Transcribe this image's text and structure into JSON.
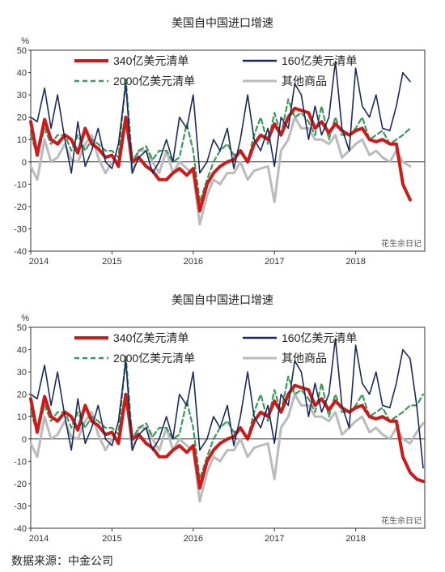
{
  "source": "数据来源：中金公司",
  "watermark": "花生余日记",
  "colors": {
    "s340": "#cc1a1a",
    "s160": "#1a2a5a",
    "s2000": "#3a9a58",
    "other": "#bbbbbb"
  },
  "chart_data": [
    {
      "type": "line",
      "title": "美国自中国进口增速",
      "ylabel": "%",
      "ylim": [
        -40,
        50
      ],
      "yticks": [
        "50",
        "40",
        "30",
        "20",
        "10",
        "0",
        "-10",
        "-20",
        "-30",
        "-40"
      ],
      "xticks": [
        "2014",
        "2015",
        "2016",
        "2017",
        "2018"
      ],
      "xlim": [
        2014.0,
        2018.85
      ],
      "legend": [
        "340亿美元清单",
        "160亿美元清单",
        "2000亿美元清单",
        "其他商品"
      ],
      "series": [
        {
          "name": "340亿美元清单",
          "x": [
            2014.0,
            2014.08,
            2014.17,
            2014.25,
            2014.33,
            2014.42,
            2014.5,
            2014.58,
            2014.67,
            2014.75,
            2014.83,
            2014.92,
            2015.0,
            2015.08,
            2015.17,
            2015.25,
            2015.33,
            2015.42,
            2015.5,
            2015.58,
            2015.67,
            2015.75,
            2015.83,
            2015.92,
            2016.0,
            2016.08,
            2016.17,
            2016.25,
            2016.33,
            2016.42,
            2016.5,
            2016.58,
            2016.67,
            2016.75,
            2016.83,
            2016.92,
            2017.0,
            2017.08,
            2017.17,
            2017.25,
            2017.33,
            2017.42,
            2017.5,
            2017.58,
            2017.67,
            2017.75,
            2017.83,
            2017.92,
            2018.0,
            2018.08,
            2018.17,
            2018.25,
            2018.33,
            2018.42,
            2018.5,
            2018.58,
            2018.67
          ],
          "values": [
            18,
            3,
            19,
            10,
            8,
            12,
            10,
            4,
            15,
            8,
            6,
            2,
            3,
            -2,
            20,
            0,
            2,
            -2,
            -4,
            -8,
            -8,
            -5,
            -3,
            -6,
            -3,
            -22,
            -10,
            -5,
            -2,
            0,
            1,
            5,
            0,
            8,
            12,
            10,
            17,
            12,
            20,
            24,
            23,
            22,
            15,
            18,
            13,
            17,
            14,
            12,
            14,
            15,
            10,
            9,
            10,
            8,
            8,
            -10,
            -17
          ]
        },
        {
          "name": "160亿美元清单",
          "x": [
            2014.0,
            2014.08,
            2014.17,
            2014.25,
            2014.33,
            2014.42,
            2014.5,
            2014.58,
            2014.67,
            2014.75,
            2014.83,
            2014.92,
            2015.0,
            2015.08,
            2015.17,
            2015.25,
            2015.33,
            2015.42,
            2015.5,
            2015.58,
            2015.67,
            2015.75,
            2015.83,
            2015.92,
            2016.0,
            2016.08,
            2016.17,
            2016.25,
            2016.33,
            2016.42,
            2016.5,
            2016.58,
            2016.67,
            2016.75,
            2016.83,
            2016.92,
            2017.0,
            2017.08,
            2017.17,
            2017.25,
            2017.33,
            2017.42,
            2017.5,
            2017.58,
            2017.67,
            2017.75,
            2017.83,
            2017.92,
            2018.0,
            2018.08,
            2018.17,
            2018.25,
            2018.33,
            2018.42,
            2018.5,
            2018.58,
            2018.67
          ],
          "values": [
            20,
            18,
            33,
            15,
            30,
            10,
            -5,
            18,
            -2,
            5,
            15,
            0,
            -3,
            8,
            35,
            -5,
            2,
            5,
            -5,
            0,
            10,
            0,
            20,
            15,
            30,
            -5,
            0,
            10,
            5,
            15,
            -3,
            10,
            30,
            10,
            5,
            15,
            -2,
            20,
            15,
            35,
            30,
            10,
            25,
            12,
            20,
            45,
            15,
            5,
            42,
            25,
            20,
            30,
            15,
            14,
            25,
            40,
            36
          ]
        },
        {
          "name": "2000亿美元清单",
          "x": [
            2014.0,
            2014.08,
            2014.17,
            2014.25,
            2014.33,
            2014.42,
            2014.5,
            2014.58,
            2014.67,
            2014.75,
            2014.83,
            2014.92,
            2015.0,
            2015.08,
            2015.17,
            2015.25,
            2015.33,
            2015.42,
            2015.5,
            2015.58,
            2015.67,
            2015.75,
            2015.83,
            2015.92,
            2016.0,
            2016.08,
            2016.17,
            2016.25,
            2016.33,
            2016.42,
            2016.5,
            2016.58,
            2016.67,
            2016.75,
            2016.83,
            2016.92,
            2017.0,
            2017.08,
            2017.17,
            2017.25,
            2017.33,
            2017.42,
            2017.5,
            2017.58,
            2017.67,
            2017.75,
            2017.83,
            2017.92,
            2018.0,
            2018.08,
            2018.17,
            2018.25,
            2018.33,
            2018.42,
            2018.5,
            2018.58,
            2018.67
          ],
          "values": [
            12,
            3,
            15,
            8,
            12,
            12,
            5,
            12,
            5,
            10,
            8,
            5,
            5,
            2,
            37,
            0,
            5,
            7,
            1,
            5,
            5,
            0,
            2,
            17,
            5,
            -18,
            -8,
            0,
            5,
            8,
            3,
            5,
            0,
            12,
            20,
            8,
            22,
            12,
            28,
            20,
            22,
            18,
            12,
            25,
            10,
            20,
            12,
            12,
            15,
            20,
            10,
            12,
            14,
            8,
            10,
            12,
            15
          ]
        },
        {
          "name": "其他商品",
          "x": [
            2014.0,
            2014.08,
            2014.17,
            2014.25,
            2014.33,
            2014.42,
            2014.5,
            2014.58,
            2014.67,
            2014.75,
            2014.83,
            2014.92,
            2015.0,
            2015.08,
            2015.17,
            2015.25,
            2015.33,
            2015.42,
            2015.5,
            2015.58,
            2015.67,
            2015.75,
            2015.83,
            2015.92,
            2016.0,
            2016.08,
            2016.17,
            2016.25,
            2016.33,
            2016.42,
            2016.5,
            2016.58,
            2016.67,
            2016.75,
            2016.83,
            2016.92,
            2017.0,
            2017.08,
            2017.17,
            2017.25,
            2017.33,
            2017.42,
            2017.5,
            2017.58,
            2017.67,
            2017.75,
            2017.83,
            2017.92,
            2018.0,
            2018.08,
            2018.17,
            2018.25,
            2018.33,
            2018.42,
            2018.5,
            2018.58,
            2018.67
          ],
          "values": [
            -2,
            -8,
            10,
            0,
            2,
            8,
            1,
            0,
            8,
            12,
            2,
            -5,
            0,
            0,
            20,
            -5,
            5,
            5,
            0,
            -5,
            5,
            -5,
            0,
            -3,
            -5,
            -28,
            -15,
            -8,
            -10,
            -5,
            -5,
            0,
            -8,
            -4,
            -3,
            -2,
            -18,
            5,
            10,
            20,
            15,
            15,
            10,
            10,
            8,
            12,
            2,
            5,
            8,
            10,
            3,
            5,
            2,
            0,
            5,
            0,
            -2
          ]
        }
      ]
    },
    {
      "type": "line",
      "title": "美国自中国进口增速",
      "ylabel": "%",
      "ylim": [
        -40,
        50
      ],
      "yticks": [
        "50",
        "40",
        "30",
        "20",
        "10",
        "0",
        "-10",
        "-20",
        "-30",
        "-40"
      ],
      "xticks": [
        "2014",
        "2015",
        "2016",
        "2017",
        "2018"
      ],
      "xlim": [
        2014.0,
        2018.85
      ],
      "legend": [
        "340亿美元清单",
        "160亿美元清单",
        "2000亿美元清单",
        "其他商品"
      ],
      "series": [
        {
          "name": "340亿美元清单",
          "x": [
            2014.0,
            2014.08,
            2014.17,
            2014.25,
            2014.33,
            2014.42,
            2014.5,
            2014.58,
            2014.67,
            2014.75,
            2014.83,
            2014.92,
            2015.0,
            2015.08,
            2015.17,
            2015.25,
            2015.33,
            2015.42,
            2015.5,
            2015.58,
            2015.67,
            2015.75,
            2015.83,
            2015.92,
            2016.0,
            2016.08,
            2016.17,
            2016.25,
            2016.33,
            2016.42,
            2016.5,
            2016.58,
            2016.67,
            2016.75,
            2016.83,
            2016.92,
            2017.0,
            2017.08,
            2017.17,
            2017.25,
            2017.33,
            2017.42,
            2017.5,
            2017.58,
            2017.67,
            2017.75,
            2017.83,
            2017.92,
            2018.0,
            2018.08,
            2018.17,
            2018.25,
            2018.33,
            2018.42,
            2018.5,
            2018.58,
            2018.67,
            2018.75,
            2018.83
          ],
          "values": [
            18,
            3,
            19,
            10,
            8,
            12,
            10,
            4,
            15,
            8,
            6,
            2,
            3,
            -2,
            20,
            0,
            2,
            -2,
            -4,
            -8,
            -8,
            -5,
            -3,
            -6,
            -3,
            -22,
            -10,
            -5,
            -2,
            0,
            1,
            5,
            0,
            8,
            12,
            10,
            17,
            12,
            20,
            24,
            23,
            22,
            15,
            18,
            13,
            17,
            14,
            12,
            14,
            15,
            10,
            9,
            10,
            8,
            8,
            -8,
            -15,
            -18,
            -19
          ]
        },
        {
          "name": "160亿美元清单",
          "x": [
            2014.0,
            2014.08,
            2014.17,
            2014.25,
            2014.33,
            2014.42,
            2014.5,
            2014.58,
            2014.67,
            2014.75,
            2014.83,
            2014.92,
            2015.0,
            2015.08,
            2015.17,
            2015.25,
            2015.33,
            2015.42,
            2015.5,
            2015.58,
            2015.67,
            2015.75,
            2015.83,
            2015.92,
            2016.0,
            2016.08,
            2016.17,
            2016.25,
            2016.33,
            2016.42,
            2016.5,
            2016.58,
            2016.67,
            2016.75,
            2016.83,
            2016.92,
            2017.0,
            2017.08,
            2017.17,
            2017.25,
            2017.33,
            2017.42,
            2017.5,
            2017.58,
            2017.67,
            2017.75,
            2017.83,
            2017.92,
            2018.0,
            2018.08,
            2018.17,
            2018.25,
            2018.33,
            2018.42,
            2018.5,
            2018.58,
            2018.67,
            2018.75,
            2018.83
          ],
          "values": [
            20,
            18,
            33,
            15,
            30,
            10,
            -5,
            18,
            -2,
            5,
            15,
            0,
            -3,
            8,
            35,
            -5,
            2,
            5,
            -5,
            0,
            10,
            0,
            20,
            15,
            30,
            -5,
            0,
            10,
            5,
            15,
            -3,
            10,
            30,
            10,
            5,
            15,
            -2,
            20,
            15,
            35,
            30,
            10,
            25,
            12,
            20,
            45,
            15,
            5,
            42,
            25,
            20,
            30,
            15,
            14,
            25,
            40,
            36,
            15,
            -13
          ]
        },
        {
          "name": "2000亿美元清单",
          "x": [
            2014.0,
            2014.08,
            2014.17,
            2014.25,
            2014.33,
            2014.42,
            2014.5,
            2014.58,
            2014.67,
            2014.75,
            2014.83,
            2014.92,
            2015.0,
            2015.08,
            2015.17,
            2015.25,
            2015.33,
            2015.42,
            2015.5,
            2015.58,
            2015.67,
            2015.75,
            2015.83,
            2015.92,
            2016.0,
            2016.08,
            2016.17,
            2016.25,
            2016.33,
            2016.42,
            2016.5,
            2016.58,
            2016.67,
            2016.75,
            2016.83,
            2016.92,
            2017.0,
            2017.08,
            2017.17,
            2017.25,
            2017.33,
            2017.42,
            2017.5,
            2017.58,
            2017.67,
            2017.75,
            2017.83,
            2017.92,
            2018.0,
            2018.08,
            2018.17,
            2018.25,
            2018.33,
            2018.42,
            2018.5,
            2018.58,
            2018.67,
            2018.75,
            2018.83
          ],
          "values": [
            12,
            3,
            15,
            8,
            12,
            12,
            5,
            12,
            5,
            10,
            8,
            5,
            5,
            2,
            37,
            0,
            5,
            7,
            1,
            5,
            5,
            0,
            2,
            17,
            5,
            -18,
            -8,
            0,
            5,
            8,
            3,
            5,
            0,
            12,
            20,
            8,
            22,
            12,
            28,
            20,
            22,
            18,
            12,
            25,
            10,
            20,
            12,
            12,
            15,
            20,
            10,
            12,
            14,
            8,
            10,
            12,
            15,
            15,
            20
          ]
        },
        {
          "name": "其他商品",
          "x": [
            2014.0,
            2014.08,
            2014.17,
            2014.25,
            2014.33,
            2014.42,
            2014.5,
            2014.58,
            2014.67,
            2014.75,
            2014.83,
            2014.92,
            2015.0,
            2015.08,
            2015.17,
            2015.25,
            2015.33,
            2015.42,
            2015.5,
            2015.58,
            2015.67,
            2015.75,
            2015.83,
            2015.92,
            2016.0,
            2016.08,
            2016.17,
            2016.25,
            2016.33,
            2016.42,
            2016.5,
            2016.58,
            2016.67,
            2016.75,
            2016.83,
            2016.92,
            2017.0,
            2017.08,
            2017.17,
            2017.25,
            2017.33,
            2017.42,
            2017.5,
            2017.58,
            2017.67,
            2017.75,
            2017.83,
            2017.92,
            2018.0,
            2018.08,
            2018.17,
            2018.25,
            2018.33,
            2018.42,
            2018.5,
            2018.58,
            2018.67,
            2018.75,
            2018.83
          ],
          "values": [
            -2,
            -8,
            10,
            0,
            2,
            8,
            1,
            0,
            8,
            12,
            2,
            -5,
            0,
            0,
            20,
            -5,
            5,
            5,
            0,
            -5,
            5,
            -5,
            0,
            -3,
            -5,
            -28,
            -15,
            -8,
            -10,
            -5,
            -5,
            0,
            -8,
            -4,
            -3,
            -2,
            -18,
            5,
            10,
            20,
            15,
            15,
            10,
            10,
            8,
            12,
            2,
            5,
            8,
            10,
            3,
            5,
            2,
            0,
            5,
            0,
            -2,
            3,
            7
          ]
        }
      ]
    }
  ]
}
